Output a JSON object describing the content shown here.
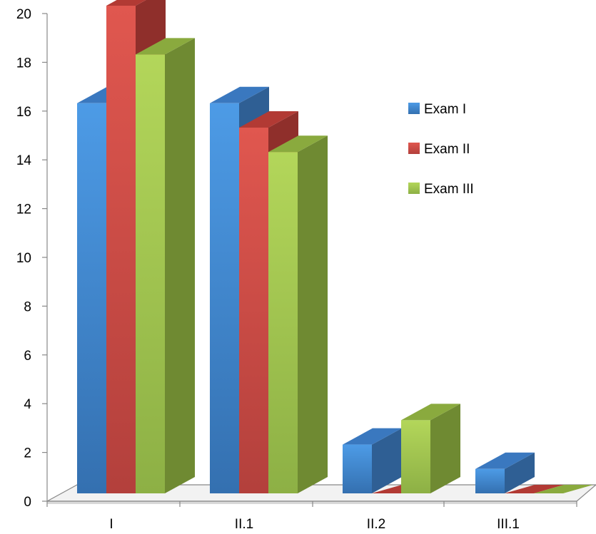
{
  "chart_data": {
    "type": "bar",
    "title": "",
    "xlabel": "",
    "ylabel": "",
    "categories": [
      "I",
      "II.1",
      "II.2",
      "III.1"
    ],
    "series": [
      {
        "name": "Exam I",
        "values": [
          16,
          16,
          2,
          1
        ],
        "color": "#4a90d9"
      },
      {
        "name": "Exam II",
        "values": [
          20,
          15,
          0,
          0
        ],
        "color": "#d9534f"
      },
      {
        "name": "Exam III",
        "values": [
          18,
          14,
          3,
          0
        ],
        "color": "#a4c94f"
      }
    ],
    "ylim": [
      0,
      20
    ],
    "yticks": [
      0,
      2,
      4,
      6,
      8,
      10,
      12,
      14,
      16,
      18,
      20
    ],
    "grid": false,
    "legend": "right",
    "style": "3d-column"
  }
}
